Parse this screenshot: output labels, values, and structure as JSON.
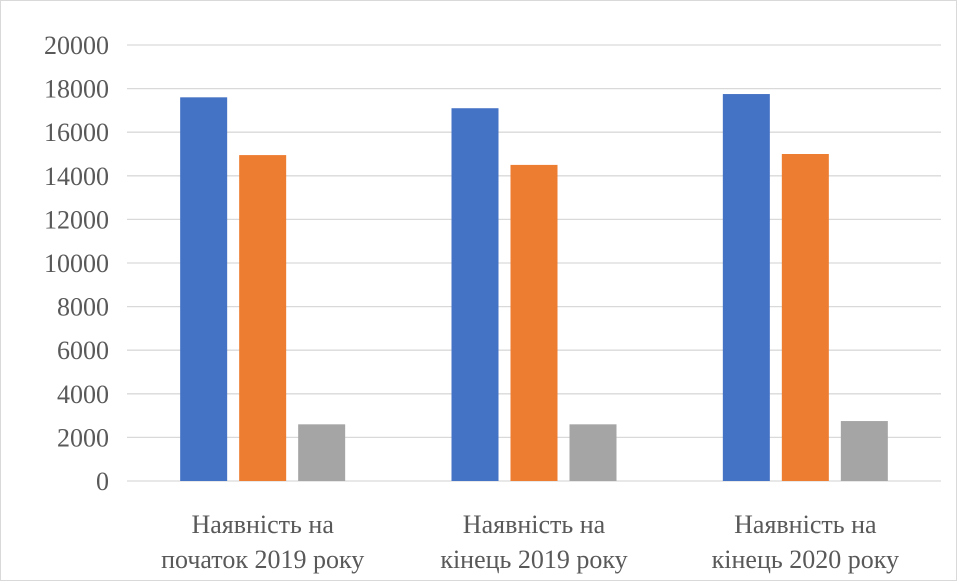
{
  "chart_data": {
    "type": "bar",
    "categories": [
      [
        "Наявність на",
        "початок 2019 року"
      ],
      [
        "Наявність на",
        "кінець 2019 року"
      ],
      [
        "Наявність на",
        "кінець 2020 року"
      ]
    ],
    "series": [
      {
        "color": "#4472C4",
        "values": [
          17600,
          17100,
          17750
        ]
      },
      {
        "color": "#ED7D31",
        "values": [
          14950,
          14500,
          15000
        ]
      },
      {
        "color": "#A5A5A5",
        "values": [
          2600,
          2600,
          2750
        ]
      }
    ],
    "ylim": [
      0,
      20000
    ],
    "yticks": [
      0,
      2000,
      4000,
      6000,
      8000,
      10000,
      12000,
      14000,
      16000,
      18000,
      20000
    ],
    "grid": true,
    "legend": "none",
    "title": "",
    "xlabel": "",
    "ylabel": ""
  }
}
